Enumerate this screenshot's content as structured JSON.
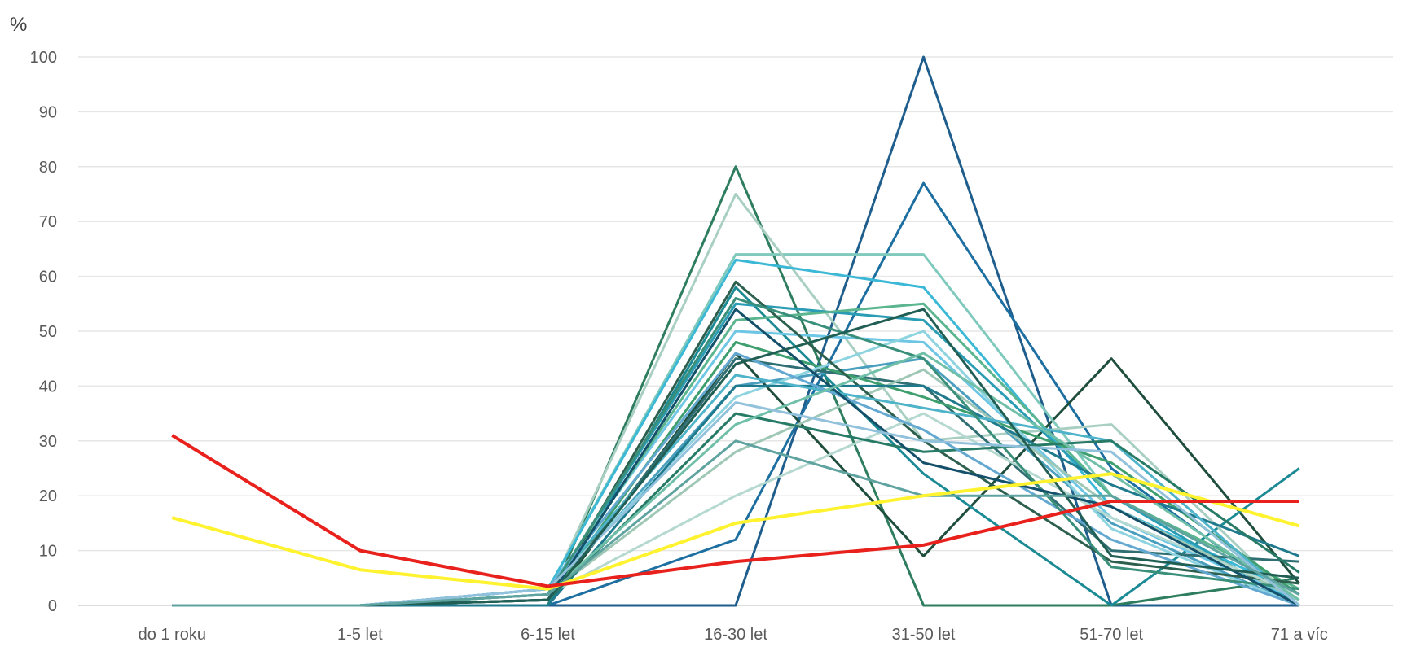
{
  "chart_data": {
    "type": "line",
    "title": "",
    "ylabel": "%",
    "xlabel": "",
    "categories": [
      "do 1 roku",
      "1-5 let",
      "6-15 let",
      "16-30 let",
      "31-50 let",
      "51-70 let",
      "71 a víc"
    ],
    "yticks": [
      0,
      10,
      20,
      30,
      40,
      50,
      60,
      70,
      80,
      90,
      100
    ],
    "ylim": [
      0,
      100
    ],
    "grid": true,
    "legend": "none",
    "series": [
      {
        "color": "#E8211C",
        "values": [
          31,
          10,
          3.5,
          8,
          11,
          19,
          19
        ]
      },
      {
        "color": "#FFF22E",
        "values": [
          16,
          6.5,
          3,
          15,
          20,
          24,
          14.5
        ]
      },
      {
        "color": "#1F5E8C",
        "values": [
          0,
          0,
          0,
          0,
          100,
          0,
          0
        ]
      },
      {
        "color": "#1C6FA0",
        "values": [
          0,
          0,
          0,
          12,
          77,
          25,
          0
        ]
      },
      {
        "color": "#2E7D5E",
        "values": [
          0,
          0,
          0,
          80,
          0,
          0,
          5
        ]
      },
      {
        "color": "#1F4E3D",
        "values": [
          0,
          0,
          0,
          46,
          9,
          45,
          4
        ]
      },
      {
        "color": "#1B8A94",
        "values": [
          0,
          0,
          0,
          58,
          24,
          0,
          25
        ]
      },
      {
        "color": "#7FC9BD",
        "values": [
          0,
          0,
          3,
          64,
          64,
          20,
          0
        ]
      },
      {
        "color": "#A9CFC3",
        "values": [
          0,
          0,
          2,
          75,
          30,
          33,
          0
        ]
      },
      {
        "color": "#3BB8D6",
        "values": [
          0,
          0,
          3,
          63,
          58,
          18,
          2
        ]
      },
      {
        "color": "#2A9DB5",
        "values": [
          0,
          0,
          2,
          55,
          52,
          20,
          0
        ]
      },
      {
        "color": "#6EC6E5",
        "values": [
          0,
          0,
          3,
          50,
          48,
          16,
          1
        ]
      },
      {
        "color": "#4A9FBF",
        "values": [
          0,
          0,
          2,
          40,
          45,
          15,
          0
        ]
      },
      {
        "color": "#2F6F73",
        "values": [
          0,
          0,
          1,
          45,
          40,
          10,
          8
        ]
      },
      {
        "color": "#5BB58F",
        "values": [
          0,
          0,
          2,
          52,
          55,
          20,
          3
        ]
      },
      {
        "color": "#3E9E6E",
        "values": [
          0,
          0,
          1,
          48,
          38,
          26,
          2
        ]
      },
      {
        "color": "#8DD3E0",
        "values": [
          0,
          0,
          3,
          38,
          50,
          14,
          0
        ]
      },
      {
        "color": "#9FC7B5",
        "values": [
          0,
          0,
          2,
          28,
          43,
          18,
          1
        ]
      },
      {
        "color": "#2D5F4F",
        "values": [
          0,
          0,
          1,
          59,
          30,
          8,
          4
        ]
      },
      {
        "color": "#1E7A8C",
        "values": [
          0,
          0,
          0,
          40,
          40,
          22,
          9
        ]
      },
      {
        "color": "#4FB3C9",
        "values": [
          0,
          0,
          3,
          42,
          36,
          30,
          0
        ]
      },
      {
        "color": "#B5D9D0",
        "values": [
          0,
          0,
          2,
          20,
          35,
          16,
          2
        ]
      },
      {
        "color": "#267A66",
        "values": [
          0,
          0,
          1,
          35,
          28,
          30,
          6
        ]
      },
      {
        "color": "#63A8D1",
        "values": [
          0,
          0,
          3,
          46,
          32,
          12,
          0
        ]
      },
      {
        "color": "#3A8F7A",
        "values": [
          0,
          0,
          2,
          56,
          45,
          7,
          3
        ]
      },
      {
        "color": "#14506A",
        "values": [
          0,
          0,
          1,
          54,
          26,
          18,
          0
        ]
      },
      {
        "color": "#70BFA8",
        "values": [
          0,
          0,
          2,
          33,
          46,
          24,
          1
        ]
      },
      {
        "color": "#92C1DC",
        "values": [
          0,
          0,
          3,
          37,
          30,
          28,
          0
        ]
      },
      {
        "color": "#215E54",
        "values": [
          0,
          0,
          1,
          44,
          54,
          9,
          5
        ]
      },
      {
        "color": "#5FA3A0",
        "values": [
          0,
          0,
          2,
          30,
          20,
          20,
          2
        ]
      }
    ]
  }
}
